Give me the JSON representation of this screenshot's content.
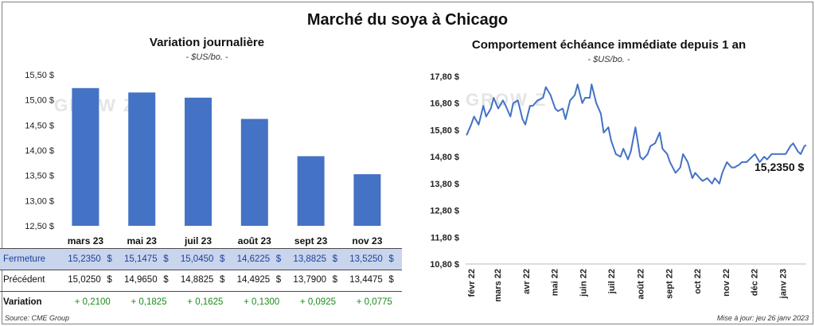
{
  "title": "Marché du soya à Chicago",
  "left_panel": {
    "title": "Variation journalière",
    "subtitle": "- $US/bo. -"
  },
  "right_panel": {
    "title": "Comportement échéance immédiate depuis 1 an",
    "subtitle": "- $US/bo. -",
    "last_value_label": "15,2350 $"
  },
  "watermark": "GROW Z",
  "table": {
    "rows": [
      {
        "label": "Fermeture",
        "values": [
          "15,2350",
          "15,1475",
          "15,0450",
          "14,6225",
          "13,8825",
          "13,5250"
        ],
        "currency": "$"
      },
      {
        "label": "Précédent",
        "values": [
          "15,0250",
          "14,9650",
          "14,8825",
          "14,4925",
          "13,7900",
          "13,4475"
        ],
        "currency": "$"
      },
      {
        "label": "Variation",
        "values": [
          "+ 0,2100",
          "+ 0,1825",
          "+ 0,1625",
          "+ 0,1300",
          "+ 0,0925",
          "+ 0,0775"
        ],
        "currency": ""
      }
    ]
  },
  "footer": {
    "source": "Source: CME Group",
    "updated": "Mise à jour: jeu 26 janv 2023"
  },
  "colors": {
    "bar": "#4472c4",
    "line": "#4472c4",
    "positive": "#1a8a1a",
    "table_highlight": "#c9d5ec"
  },
  "chart_data": [
    {
      "type": "bar",
      "title": "Variation journalière",
      "subtitle": "- $US/bo. -",
      "categories": [
        "mars 23",
        "mai 23",
        "juil 23",
        "août 23",
        "sept 23",
        "nov 23"
      ],
      "values": [
        15.235,
        15.1475,
        15.045,
        14.6225,
        13.8825,
        13.525
      ],
      "ylim": [
        12.5,
        15.5
      ],
      "yticks": [
        "12,50 $",
        "13,00 $",
        "13,50 $",
        "14,00 $",
        "14,50 $",
        "15,00 $",
        "15,50 $"
      ],
      "ytick_values": [
        12.5,
        13.0,
        13.5,
        14.0,
        14.5,
        15.0,
        15.5
      ],
      "grid": false,
      "legend": "none"
    },
    {
      "type": "line",
      "title": "Comportement échéance immédiate depuis 1 an",
      "subtitle": "- $US/bo. -",
      "ylim": [
        10.8,
        17.8
      ],
      "yticks": [
        "10,80 $",
        "11,80 $",
        "12,80 $",
        "13,80 $",
        "14,80 $",
        "15,80 $",
        "16,80 $",
        "17,80 $"
      ],
      "ytick_values": [
        10.8,
        11.8,
        12.8,
        13.8,
        14.8,
        15.8,
        16.8,
        17.8
      ],
      "xticks": [
        "févr 22",
        "mars 22",
        "avr 22",
        "mai 22",
        "juin 22",
        "juil 22",
        "août 22",
        "sept 22",
        "oct 22",
        "nov 22",
        "déc 22",
        "janv 23"
      ],
      "x_range": [
        "2022-01-26",
        "2023-01-26"
      ],
      "x": [
        "2022-01-27",
        "2022-02-01",
        "2022-02-04",
        "2022-02-09",
        "2022-02-14",
        "2022-02-17",
        "2022-02-22",
        "2022-02-25",
        "2022-03-02",
        "2022-03-07",
        "2022-03-10",
        "2022-03-15",
        "2022-03-18",
        "2022-03-23",
        "2022-03-28",
        "2022-03-31",
        "2022-04-05",
        "2022-04-08",
        "2022-04-13",
        "2022-04-19",
        "2022-04-22",
        "2022-04-27",
        "2022-05-02",
        "2022-05-05",
        "2022-05-10",
        "2022-05-13",
        "2022-05-18",
        "2022-05-23",
        "2022-05-26",
        "2022-05-31",
        "2022-06-03",
        "2022-06-08",
        "2022-06-10",
        "2022-06-15",
        "2022-06-20",
        "2022-06-23",
        "2022-06-28",
        "2022-07-01",
        "2022-07-06",
        "2022-07-11",
        "2022-07-14",
        "2022-07-19",
        "2022-07-22",
        "2022-07-27",
        "2022-08-01",
        "2022-08-04",
        "2022-08-09",
        "2022-08-12",
        "2022-08-17",
        "2022-08-22",
        "2022-08-25",
        "2022-08-30",
        "2022-09-02",
        "2022-09-08",
        "2022-09-13",
        "2022-09-16",
        "2022-09-21",
        "2022-09-26",
        "2022-09-29",
        "2022-10-04",
        "2022-10-07",
        "2022-10-12",
        "2022-10-17",
        "2022-10-20",
        "2022-10-25",
        "2022-10-28",
        "2022-11-02",
        "2022-11-07",
        "2022-11-10",
        "2022-11-15",
        "2022-11-18",
        "2022-11-23",
        "2022-11-29",
        "2022-12-02",
        "2022-12-07",
        "2022-12-12",
        "2022-12-15",
        "2022-12-20",
        "2022-12-23",
        "2022-12-29",
        "2023-01-04",
        "2023-01-09",
        "2023-01-12",
        "2023-01-17",
        "2023-01-20",
        "2023-01-24",
        "2023-01-26"
      ],
      "y": [
        15.6,
        16.0,
        16.3,
        16.0,
        16.7,
        16.3,
        16.6,
        17.0,
        16.6,
        16.9,
        16.7,
        16.3,
        16.8,
        16.9,
        16.2,
        16.0,
        16.7,
        16.7,
        16.9,
        17.0,
        17.4,
        17.1,
        16.6,
        16.5,
        16.6,
        16.2,
        16.9,
        17.1,
        17.5,
        16.8,
        17.0,
        17.0,
        17.5,
        16.8,
        16.4,
        15.7,
        15.9,
        15.4,
        14.9,
        14.8,
        15.1,
        14.7,
        15.0,
        15.9,
        14.8,
        14.7,
        14.9,
        15.2,
        15.3,
        15.7,
        15.1,
        14.9,
        14.6,
        14.2,
        14.4,
        14.9,
        14.6,
        14.0,
        14.2,
        14.0,
        13.9,
        14.0,
        13.8,
        14.0,
        13.8,
        14.2,
        14.6,
        14.4,
        14.4,
        14.5,
        14.6,
        14.6,
        14.8,
        14.9,
        14.6,
        14.8,
        14.7,
        14.9,
        14.9,
        14.9,
        14.9,
        15.2,
        15.3,
        15.0,
        14.9,
        15.2,
        15.235
      ],
      "grid": false,
      "legend": "none"
    }
  ]
}
